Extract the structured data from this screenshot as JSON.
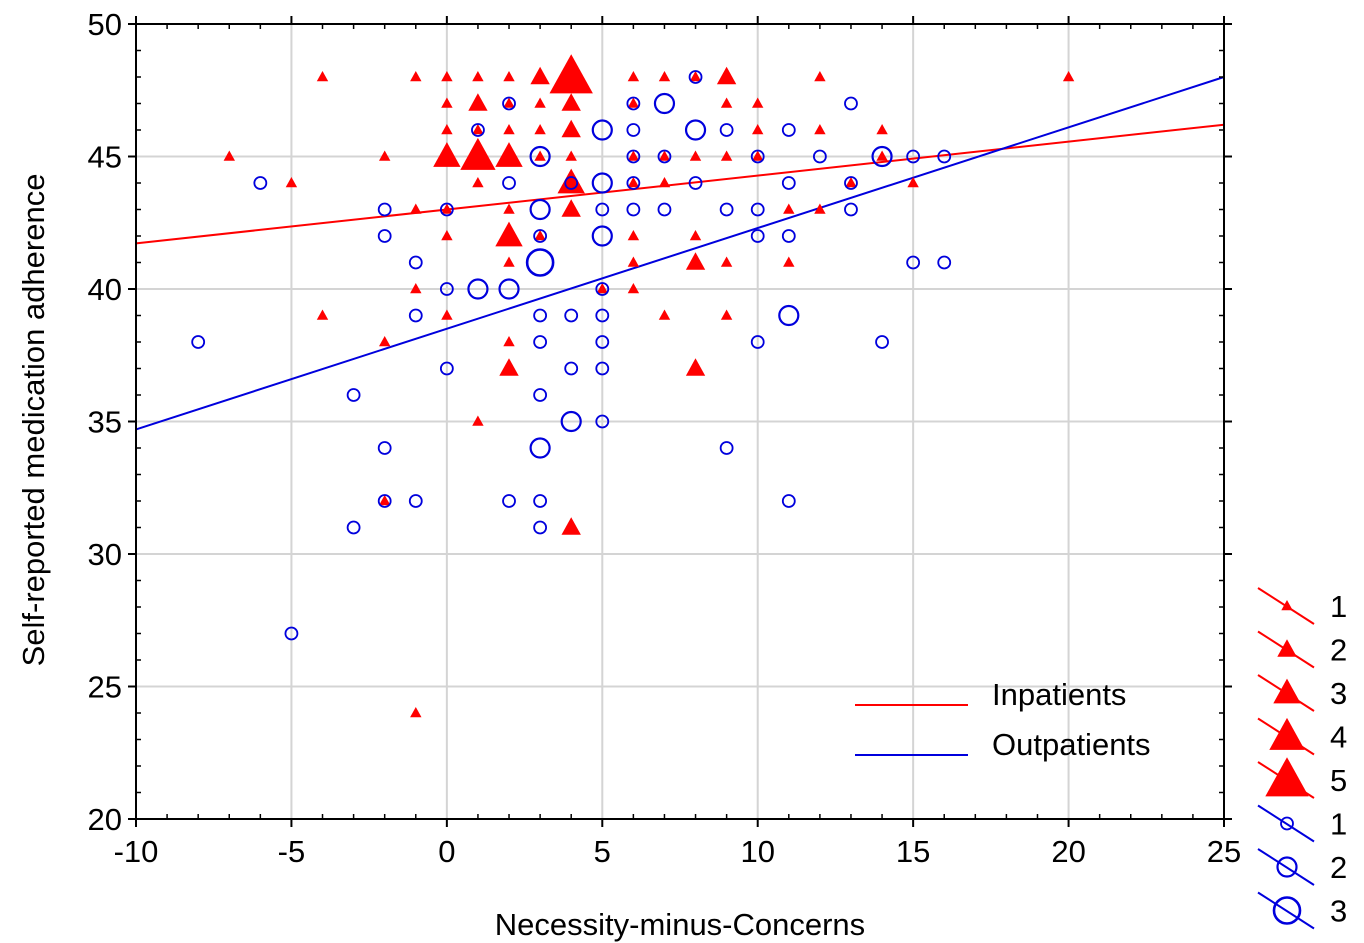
{
  "chart_data": {
    "type": "scatter",
    "title": "",
    "xlabel": "Necessity-minus-Concerns",
    "ylabel": "Self-reported medication adherence",
    "xlim": [
      -10,
      25
    ],
    "ylim": [
      20,
      50
    ],
    "xticks": [
      "-10",
      "-5",
      "0",
      "5",
      "10",
      "15",
      "20",
      "25"
    ],
    "yticks": [
      "20",
      "25",
      "30",
      "35",
      "40",
      "45",
      "50"
    ],
    "xtick_values": [
      -10,
      -5,
      0,
      5,
      10,
      15,
      20,
      25
    ],
    "ytick_values": [
      20,
      25,
      30,
      35,
      40,
      45,
      50
    ],
    "grid": true,
    "legend_position": "bottom-right",
    "series": [
      {
        "name": "Inpatients",
        "color": "#ff0000",
        "marker": "triangle",
        "regression": {
          "intercept": 43.0,
          "slope": 0.128
        },
        "points": [
          [
            -7,
            45,
            1
          ],
          [
            -5,
            44,
            1
          ],
          [
            -4,
            48,
            1
          ],
          [
            -4,
            39,
            1
          ],
          [
            -2,
            45,
            1
          ],
          [
            -2,
            38,
            1
          ],
          [
            -2,
            32,
            1
          ],
          [
            -1,
            48,
            1
          ],
          [
            -1,
            43,
            1
          ],
          [
            -1,
            40,
            1
          ],
          [
            -1,
            24,
            1
          ],
          [
            0,
            48,
            1
          ],
          [
            0,
            47,
            1
          ],
          [
            0,
            46,
            1
          ],
          [
            0,
            45,
            3
          ],
          [
            0,
            43,
            1
          ],
          [
            0,
            42,
            1
          ],
          [
            0,
            39,
            1
          ],
          [
            1,
            48,
            1
          ],
          [
            1,
            47,
            2
          ],
          [
            1,
            46,
            1
          ],
          [
            1,
            45,
            4
          ],
          [
            1,
            44,
            1
          ],
          [
            1,
            35,
            1
          ],
          [
            2,
            48,
            1
          ],
          [
            2,
            47,
            1
          ],
          [
            2,
            46,
            1
          ],
          [
            2,
            45,
            3
          ],
          [
            2,
            43,
            1
          ],
          [
            2,
            42,
            3
          ],
          [
            2,
            41,
            1
          ],
          [
            2,
            38,
            1
          ],
          [
            2,
            37,
            2
          ],
          [
            3,
            48,
            2
          ],
          [
            3,
            47,
            1
          ],
          [
            3,
            46,
            1
          ],
          [
            3,
            45,
            1
          ],
          [
            3,
            42,
            1
          ],
          [
            4,
            48,
            5
          ],
          [
            4,
            47,
            2
          ],
          [
            4,
            46,
            2
          ],
          [
            4,
            45,
            1
          ],
          [
            4,
            44,
            3
          ],
          [
            4,
            43,
            2
          ],
          [
            4,
            31,
            2
          ],
          [
            5,
            40,
            1
          ],
          [
            6,
            48,
            1
          ],
          [
            6,
            47,
            1
          ],
          [
            6,
            45,
            1
          ],
          [
            6,
            44,
            1
          ],
          [
            6,
            42,
            1
          ],
          [
            6,
            41,
            1
          ],
          [
            6,
            40,
            1
          ],
          [
            7,
            48,
            1
          ],
          [
            7,
            45,
            1
          ],
          [
            7,
            44,
            1
          ],
          [
            7,
            39,
            1
          ],
          [
            8,
            48,
            1
          ],
          [
            8,
            45,
            1
          ],
          [
            8,
            42,
            1
          ],
          [
            8,
            41,
            2
          ],
          [
            8,
            37,
            2
          ],
          [
            9,
            48,
            2
          ],
          [
            9,
            47,
            1
          ],
          [
            9,
            45,
            1
          ],
          [
            9,
            41,
            1
          ],
          [
            9,
            39,
            1
          ],
          [
            10,
            47,
            1
          ],
          [
            10,
            46,
            1
          ],
          [
            10,
            45,
            1
          ],
          [
            11,
            43,
            1
          ],
          [
            11,
            41,
            1
          ],
          [
            12,
            48,
            1
          ],
          [
            12,
            46,
            1
          ],
          [
            12,
            43,
            1
          ],
          [
            13,
            44,
            1
          ],
          [
            14,
            46,
            1
          ],
          [
            14,
            45,
            1
          ],
          [
            15,
            44,
            1
          ],
          [
            20,
            48,
            1
          ]
        ]
      },
      {
        "name": "Outpatients",
        "color": "#0000dd",
        "marker": "circle",
        "regression": {
          "intercept": 38.5,
          "slope": 0.38
        },
        "points": [
          [
            -8,
            38,
            1
          ],
          [
            -6,
            44,
            1
          ],
          [
            -5,
            27,
            1
          ],
          [
            -3,
            36,
            1
          ],
          [
            -3,
            31,
            1
          ],
          [
            -2,
            43,
            1
          ],
          [
            -2,
            42,
            1
          ],
          [
            -2,
            34,
            1
          ],
          [
            -2,
            32,
            1
          ],
          [
            -1,
            41,
            1
          ],
          [
            -1,
            39,
            1
          ],
          [
            -1,
            32,
            1
          ],
          [
            0,
            43,
            1
          ],
          [
            0,
            40,
            1
          ],
          [
            0,
            37,
            1
          ],
          [
            1,
            46,
            1
          ],
          [
            1,
            40,
            2
          ],
          [
            2,
            47,
            1
          ],
          [
            2,
            44,
            1
          ],
          [
            2,
            40,
            2
          ],
          [
            2,
            32,
            1
          ],
          [
            3,
            45,
            2
          ],
          [
            3,
            43,
            2
          ],
          [
            3,
            42,
            1
          ],
          [
            3,
            41,
            3
          ],
          [
            3,
            39,
            1
          ],
          [
            3,
            38,
            1
          ],
          [
            3,
            36,
            1
          ],
          [
            3,
            34,
            2
          ],
          [
            3,
            32,
            1
          ],
          [
            3,
            31,
            1
          ],
          [
            4,
            44,
            1
          ],
          [
            4,
            39,
            1
          ],
          [
            4,
            37,
            1
          ],
          [
            4,
            35,
            2
          ],
          [
            5,
            46,
            2
          ],
          [
            5,
            44,
            2
          ],
          [
            5,
            43,
            1
          ],
          [
            5,
            42,
            2
          ],
          [
            5,
            40,
            1
          ],
          [
            5,
            39,
            1
          ],
          [
            5,
            38,
            1
          ],
          [
            5,
            37,
            1
          ],
          [
            5,
            35,
            1
          ],
          [
            6,
            47,
            1
          ],
          [
            6,
            46,
            1
          ],
          [
            6,
            45,
            1
          ],
          [
            6,
            44,
            1
          ],
          [
            6,
            43,
            1
          ],
          [
            7,
            47,
            2
          ],
          [
            7,
            45,
            1
          ],
          [
            7,
            43,
            1
          ],
          [
            8,
            48,
            1
          ],
          [
            8,
            46,
            2
          ],
          [
            8,
            44,
            1
          ],
          [
            9,
            46,
            1
          ],
          [
            9,
            43,
            1
          ],
          [
            9,
            34,
            1
          ],
          [
            10,
            45,
            1
          ],
          [
            10,
            43,
            1
          ],
          [
            10,
            42,
            1
          ],
          [
            10,
            38,
            1
          ],
          [
            11,
            46,
            1
          ],
          [
            11,
            44,
            1
          ],
          [
            11,
            42,
            1
          ],
          [
            11,
            39,
            2
          ],
          [
            11,
            32,
            1
          ],
          [
            12,
            45,
            1
          ],
          [
            13,
            47,
            1
          ],
          [
            13,
            44,
            1
          ],
          [
            13,
            43,
            1
          ],
          [
            14,
            45,
            2
          ],
          [
            14,
            38,
            1
          ],
          [
            15,
            45,
            1
          ],
          [
            15,
            41,
            1
          ],
          [
            16,
            45,
            1
          ],
          [
            16,
            41,
            1
          ]
        ]
      }
    ],
    "size_legend": [
      {
        "series": "Inpatients",
        "labels": [
          "1",
          "2",
          "3",
          "4",
          "5"
        ]
      },
      {
        "series": "Outpatients",
        "labels": [
          "1",
          "2",
          "3"
        ]
      }
    ]
  }
}
